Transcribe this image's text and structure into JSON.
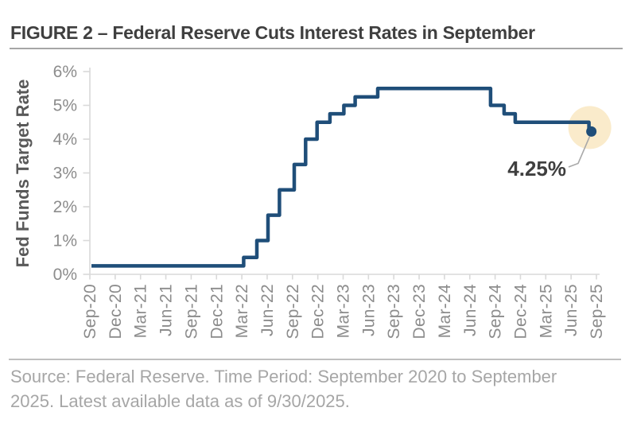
{
  "chart_data": {
    "type": "line",
    "step": true,
    "title": "FIGURE 2 – Federal Reserve Cuts Interest Rates in September",
    "xlabel": "",
    "ylabel": "Fed Funds Target Rate",
    "ylim": [
      0,
      6
    ],
    "y_ticks": [
      "0%",
      "1%",
      "2%",
      "3%",
      "4%",
      "5%",
      "6%"
    ],
    "x_ticks": [
      "Sep-20",
      "Dec-20",
      "Mar-21",
      "Jun-21",
      "Sep-21",
      "Dec-21",
      "Mar-22",
      "Jun-22",
      "Sep-22",
      "Dec-22",
      "Mar-23",
      "Jun-23",
      "Sep-23",
      "Dec-23",
      "Mar-24",
      "Jun-24",
      "Sep-24",
      "Dec-24",
      "Mar-25",
      "Jun-25",
      "Sep-25"
    ],
    "grid": false,
    "legend": "none",
    "series": [
      {
        "name": "Fed Funds Target Rate",
        "points": [
          {
            "date": "2020-09-01",
            "rate": 0.25
          },
          {
            "date": "2022-03-17",
            "rate": 0.5
          },
          {
            "date": "2022-05-05",
            "rate": 1.0
          },
          {
            "date": "2022-06-16",
            "rate": 1.75
          },
          {
            "date": "2022-07-28",
            "rate": 2.5
          },
          {
            "date": "2022-09-22",
            "rate": 3.25
          },
          {
            "date": "2022-11-03",
            "rate": 4.0
          },
          {
            "date": "2022-12-15",
            "rate": 4.5
          },
          {
            "date": "2023-02-02",
            "rate": 4.75
          },
          {
            "date": "2023-03-23",
            "rate": 5.0
          },
          {
            "date": "2023-05-04",
            "rate": 5.25
          },
          {
            "date": "2023-07-27",
            "rate": 5.5
          },
          {
            "date": "2024-09-19",
            "rate": 5.0
          },
          {
            "date": "2024-11-08",
            "rate": 4.75
          },
          {
            "date": "2024-12-19",
            "rate": 4.5
          },
          {
            "date": "2025-09-18",
            "rate": 4.25
          }
        ],
        "end_date": "2025-09-30"
      }
    ],
    "annotation": {
      "label": "4.25%",
      "value": 4.25
    },
    "colors": {
      "line": "#1f4e79",
      "endpoint_dot": "#1f4e79",
      "endpoint_highlight": "#faebcb",
      "axis": "#d9d9d9",
      "tick_text": "#8c8c8c",
      "axis_title_text": "#595959",
      "annotation_text": "#3f3f3f",
      "leader_line": "#a9a9a9"
    }
  },
  "footer": {
    "lines": [
      "Source: Federal Reserve. Time Period: September 2020 to September",
      "2025. Latest available data as of 9/30/2025."
    ],
    "source_text": "Source: Federal Reserve. Time Period: September 2020 to September 2025. Latest available data as of 9/30/2025."
  }
}
